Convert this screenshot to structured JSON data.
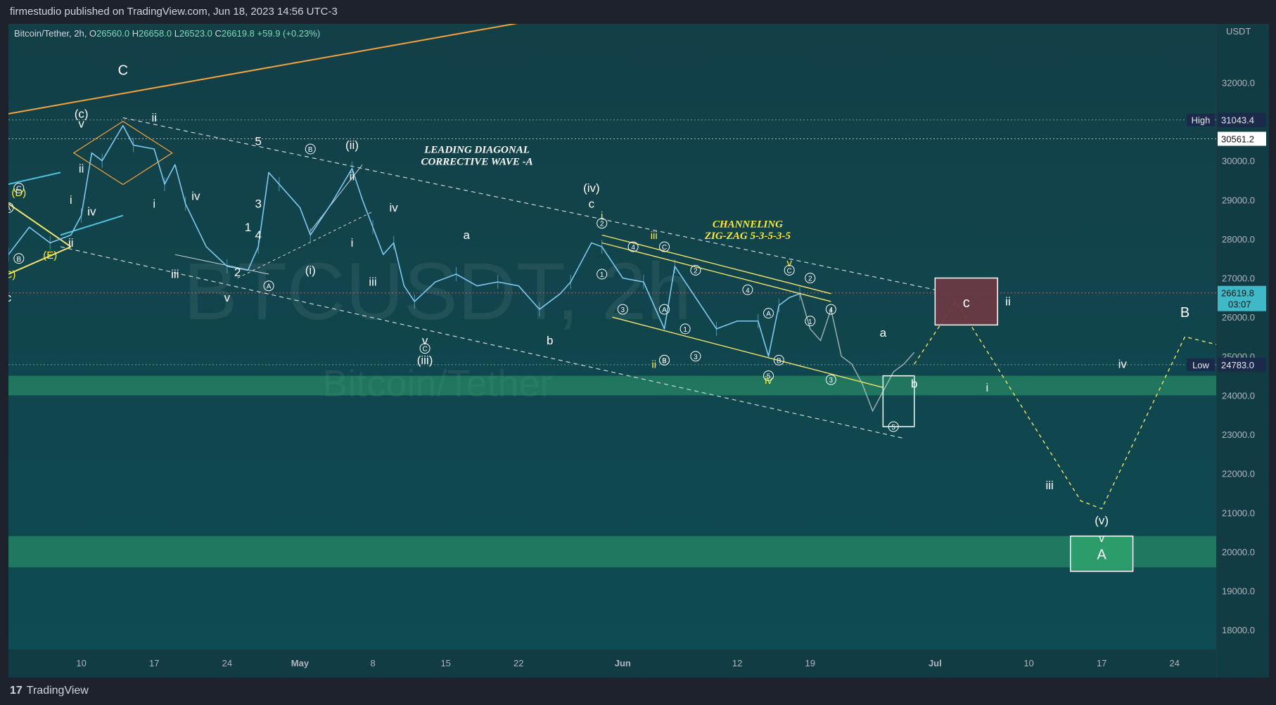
{
  "header": {
    "published": "firmestudio published on TradingView.com, Jun 18, 2023 14:56 UTC-3"
  },
  "footer": {
    "brand": "TradingView",
    "logo_mark": "17"
  },
  "symbol_bar": {
    "name": "Bitcoin/Tether, 2h,",
    "open_label": "O",
    "open": "26560.0",
    "high_label": "H",
    "high": "26658.0",
    "low_label": "L",
    "low": "26523.0",
    "close_label": "C",
    "close": "26619.8",
    "change": "+59.9",
    "change_pct": "(+0.23%)"
  },
  "watermark": {
    "ticker": "BTCUSDT, 2h",
    "name": "Bitcoin/Tether"
  },
  "colors": {
    "background": "#0e4b52",
    "candle": "#7ec8f0",
    "projection": "#c8cfd3",
    "orange": "#f7a23b",
    "yellow": "#f2e36b",
    "cyan": "#4ec3e0",
    "zone_green": "#2e9e6b",
    "zone_red": "#6b3a44",
    "label_white": "#ffffff",
    "label_yellow": "#ffe93b"
  },
  "chart_data": {
    "type": "candlestick",
    "title": "",
    "currency": "USDT",
    "ylim": [
      17500,
      33500
    ],
    "y_ticks": [
      "32000.0",
      "31000.0",
      "30000.0",
      "29000.0",
      "28000.0",
      "27000.0",
      "26000.0",
      "25000.0",
      "24000.0",
      "23000.0",
      "22000.0",
      "21000.0",
      "20000.0",
      "19000.0",
      "18000.0"
    ],
    "x_ticks": [
      "10",
      "17",
      "24",
      "May",
      "8",
      "15",
      "22",
      "Jun",
      "12",
      "19",
      "Jul",
      "10",
      "17",
      "24"
    ],
    "x_tick_dates": [
      "2023-04-10",
      "2023-04-17",
      "2023-04-24",
      "2023-05-01",
      "2023-05-08",
      "2023-05-15",
      "2023-05-22",
      "2023-06-01",
      "2023-06-12",
      "2023-06-19",
      "2023-07-01",
      "2023-07-10",
      "2023-07-17",
      "2023-07-24"
    ],
    "x_range": [
      "2023-04-03",
      "2023-07-28"
    ],
    "price_path": [
      [
        "2023-04-03",
        27600
      ],
      [
        "2023-04-05",
        28300
      ],
      [
        "2023-04-07",
        27900
      ],
      [
        "2023-04-09",
        28100
      ],
      [
        "2023-04-10",
        28600
      ],
      [
        "2023-04-11",
        30200
      ],
      [
        "2023-04-12",
        30000
      ],
      [
        "2023-04-14",
        30900
      ],
      [
        "2023-04-15",
        30400
      ],
      [
        "2023-04-17",
        30300
      ],
      [
        "2023-04-18",
        29400
      ],
      [
        "2023-04-19",
        29900
      ],
      [
        "2023-04-20",
        28900
      ],
      [
        "2023-04-22",
        27800
      ],
      [
        "2023-04-24",
        27300
      ],
      [
        "2023-04-26",
        27200
      ],
      [
        "2023-04-27",
        27800
      ],
      [
        "2023-04-28",
        29700
      ],
      [
        "2023-04-29",
        29400
      ],
      [
        "2023-05-01",
        28800
      ],
      [
        "2023-05-02",
        28100
      ],
      [
        "2023-05-04",
        28900
      ],
      [
        "2023-05-06",
        29800
      ],
      [
        "2023-05-07",
        29000
      ],
      [
        "2023-05-08",
        28300
      ],
      [
        "2023-05-09",
        27600
      ],
      [
        "2023-05-10",
        27900
      ],
      [
        "2023-05-11",
        26800
      ],
      [
        "2023-05-12",
        26400
      ],
      [
        "2023-05-14",
        26900
      ],
      [
        "2023-05-16",
        27100
      ],
      [
        "2023-05-18",
        26800
      ],
      [
        "2023-05-20",
        26900
      ],
      [
        "2023-05-22",
        26800
      ],
      [
        "2023-05-24",
        26200
      ],
      [
        "2023-05-26",
        26600
      ],
      [
        "2023-05-27",
        26900
      ],
      [
        "2023-05-29",
        27900
      ],
      [
        "2023-05-30",
        27800
      ],
      [
        "2023-06-01",
        27000
      ],
      [
        "2023-06-03",
        26900
      ],
      [
        "2023-06-05",
        25700
      ],
      [
        "2023-06-06",
        27300
      ],
      [
        "2023-06-08",
        26500
      ],
      [
        "2023-06-10",
        25700
      ],
      [
        "2023-06-12",
        25900
      ],
      [
        "2023-06-14",
        25900
      ],
      [
        "2023-06-15",
        25000
      ],
      [
        "2023-06-16",
        26300
      ],
      [
        "2023-06-17",
        26500
      ],
      [
        "2023-06-18",
        26600
      ]
    ],
    "projection_path": [
      [
        "2023-06-18",
        26620
      ],
      [
        "2023-06-19",
        25700
      ],
      [
        "2023-06-20",
        25400
      ],
      [
        "2023-06-21",
        26200
      ],
      [
        "2023-06-22",
        25000
      ],
      [
        "2023-06-23",
        24800
      ],
      [
        "2023-06-24",
        24300
      ],
      [
        "2023-06-25",
        23600
      ],
      [
        "2023-06-26",
        24100
      ],
      [
        "2023-06-27",
        24600
      ],
      [
        "2023-06-28",
        24800
      ],
      [
        "2023-06-29",
        25100
      ]
    ],
    "scenario_path": [
      [
        "2023-06-29",
        24800
      ],
      [
        "2023-07-03",
        26400
      ],
      [
        "2023-07-15",
        21300
      ],
      [
        "2023-07-17",
        21100
      ],
      [
        "2023-07-25",
        25500
      ],
      [
        "2023-07-28",
        25300
      ]
    ],
    "levels": [
      {
        "label": "High",
        "value": "31043.4",
        "price": 31043.4
      },
      {
        "label": "",
        "value": "30561.2",
        "price": 30561.2
      },
      {
        "label": "",
        "value": "26619.8",
        "price": 26619.8,
        "sub": "03:07"
      },
      {
        "label": "Low",
        "value": "24783.0",
        "price": 24783.0
      }
    ],
    "zones": [
      {
        "kind": "green-band",
        "from": 24000,
        "to": 24500
      },
      {
        "kind": "green-band",
        "from": 19600,
        "to": 20400
      }
    ],
    "boxes": [
      {
        "kind": "red",
        "x0": "2023-07-01",
        "x1": "2023-07-07",
        "y0": 25800,
        "y1": 27000,
        "label": "c"
      },
      {
        "kind": "green-outline",
        "x0": "2023-06-26",
        "x1": "2023-06-29",
        "y0": 23200,
        "y1": 24500
      },
      {
        "kind": "green",
        "x0": "2023-07-14",
        "x1": "2023-07-20",
        "y0": 19500,
        "y1": 20400,
        "label": "A"
      }
    ],
    "annotations": {
      "leading_diagonal": [
        "LEADING DIAGONAL",
        "CORRECTIVE WAVE -A"
      ],
      "channeling": [
        "CHANNELING",
        "ZIG-ZAG 5-3-5-3-5"
      ],
      "white_labels": [
        {
          "t": "C",
          "d": "2023-04-14",
          "p": 32200
        },
        {
          "t": "(c)",
          "d": "2023-04-10",
          "p": 31100
        },
        {
          "t": "v",
          "d": "2023-04-10",
          "p": 30850
        },
        {
          "t": "ii",
          "d": "2023-04-17",
          "p": 31000
        },
        {
          "t": "ii",
          "d": "2023-04-10",
          "p": 29700
        },
        {
          "t": "i",
          "d": "2023-04-09",
          "p": 28900
        },
        {
          "t": "iv",
          "d": "2023-04-11",
          "p": 28600
        },
        {
          "t": "ii",
          "d": "2023-04-09",
          "p": 27800
        },
        {
          "t": "i",
          "d": "2023-04-17",
          "p": 28800
        },
        {
          "t": "iv",
          "d": "2023-04-21",
          "p": 29000
        },
        {
          "t": "iii",
          "d": "2023-04-19",
          "p": 27000
        },
        {
          "t": "v",
          "d": "2023-04-24",
          "p": 26400
        },
        {
          "t": "c",
          "d": "2023-04-03",
          "p": 26400
        },
        {
          "t": "5",
          "d": "2023-04-27",
          "p": 30400
        },
        {
          "t": "3",
          "d": "2023-04-27",
          "p": 28800
        },
        {
          "t": "4",
          "d": "2023-04-27",
          "p": 28000
        },
        {
          "t": "1",
          "d": "2023-04-26",
          "p": 28200
        },
        {
          "t": "2",
          "d": "2023-04-25",
          "p": 27050
        },
        {
          "t": "(ii)",
          "d": "2023-05-06",
          "p": 30300
        },
        {
          "t": "ii",
          "d": "2023-05-06",
          "p": 29500
        },
        {
          "t": "(i)",
          "d": "2023-05-02",
          "p": 27100
        },
        {
          "t": "i",
          "d": "2023-05-06",
          "p": 27800
        },
        {
          "t": "iv",
          "d": "2023-05-10",
          "p": 28700
        },
        {
          "t": "iii",
          "d": "2023-05-08",
          "p": 26800
        },
        {
          "t": "(iii)",
          "d": "2023-05-13",
          "p": 24800
        },
        {
          "t": "v",
          "d": "2023-05-13",
          "p": 25300
        },
        {
          "t": "a",
          "d": "2023-05-17",
          "p": 28000
        },
        {
          "t": "b",
          "d": "2023-05-25",
          "p": 25300
        },
        {
          "t": "(iv)",
          "d": "2023-05-29",
          "p": 29200
        },
        {
          "t": "c",
          "d": "2023-05-29",
          "p": 28800
        },
        {
          "t": "a",
          "d": "2023-06-26",
          "p": 25500
        },
        {
          "t": "b",
          "d": "2023-06-29",
          "p": 24200
        },
        {
          "t": "ii",
          "d": "2023-07-08",
          "p": 26300
        },
        {
          "t": "i",
          "d": "2023-07-06",
          "p": 24100
        },
        {
          "t": "iii",
          "d": "2023-07-12",
          "p": 21600
        },
        {
          "t": "iv",
          "d": "2023-07-19",
          "p": 24700
        },
        {
          "t": "(v)",
          "d": "2023-07-17",
          "p": 20700
        },
        {
          "t": "v",
          "d": "2023-07-17",
          "p": 20250
        },
        {
          "t": "B",
          "d": "2023-07-25",
          "p": 26000
        }
      ],
      "yellow_labels": [
        {
          "t": "(D)",
          "d": "2023-04-04",
          "p": 29100
        },
        {
          "t": "(E)",
          "d": "2023-04-07",
          "p": 27500
        },
        {
          "t": "(C)",
          "d": "2023-04-03",
          "p": 27000
        },
        {
          "t": "i",
          "d": "2023-05-30",
          "p": 28500
        },
        {
          "t": "iii",
          "d": "2023-06-04",
          "p": 28000
        },
        {
          "t": "ii",
          "d": "2023-06-04",
          "p": 24700
        },
        {
          "t": "iv",
          "d": "2023-06-15",
          "p": 24300
        },
        {
          "t": "v",
          "d": "2023-06-17",
          "p": 27300
        }
      ],
      "circled_labels": [
        {
          "t": "C",
          "d": "2023-04-04",
          "p": 29300
        },
        {
          "t": "A",
          "d": "2023-04-03",
          "p": 28800
        },
        {
          "t": "B",
          "d": "2023-04-04",
          "p": 27500
        },
        {
          "t": "B",
          "d": "2023-05-02",
          "p": 30300
        },
        {
          "t": "A",
          "d": "2023-04-28",
          "p": 26800
        },
        {
          "t": "C",
          "d": "2023-05-13",
          "p": 25200
        },
        {
          "t": "2",
          "d": "2023-05-30",
          "p": 28400
        },
        {
          "t": "4",
          "d": "2023-06-02",
          "p": 27800
        },
        {
          "t": "1",
          "d": "2023-05-30",
          "p": 27100
        },
        {
          "t": "3",
          "d": "2023-06-01",
          "p": 26200
        },
        {
          "t": "C",
          "d": "2023-06-05",
          "p": 27800
        },
        {
          "t": "A",
          "d": "2023-06-05",
          "p": 26200
        },
        {
          "t": "1",
          "d": "2023-06-07",
          "p": 25700
        },
        {
          "t": "2",
          "d": "2023-06-08",
          "p": 27200
        },
        {
          "t": "3",
          "d": "2023-06-08",
          "p": 25000
        },
        {
          "t": "3",
          "d": "2023-06-05",
          "p": 24900
        },
        {
          "t": "B",
          "d": "2023-06-05",
          "p": 24900
        },
        {
          "t": "4",
          "d": "2023-06-13",
          "p": 26700
        },
        {
          "t": "5",
          "d": "2023-06-15",
          "p": 24500
        },
        {
          "t": "A",
          "d": "2023-06-15",
          "p": 26100
        },
        {
          "t": "B",
          "d": "2023-06-16",
          "p": 24900
        },
        {
          "t": "C",
          "d": "2023-06-17",
          "p": 27200
        },
        {
          "t": "2",
          "d": "2023-06-19",
          "p": 27000
        },
        {
          "t": "1",
          "d": "2023-06-19",
          "p": 25900
        },
        {
          "t": "4",
          "d": "2023-06-21",
          "p": 26200
        },
        {
          "t": "3",
          "d": "2023-06-21",
          "p": 24400
        },
        {
          "t": "5",
          "d": "2023-06-27",
          "p": 23200
        }
      ]
    }
  }
}
